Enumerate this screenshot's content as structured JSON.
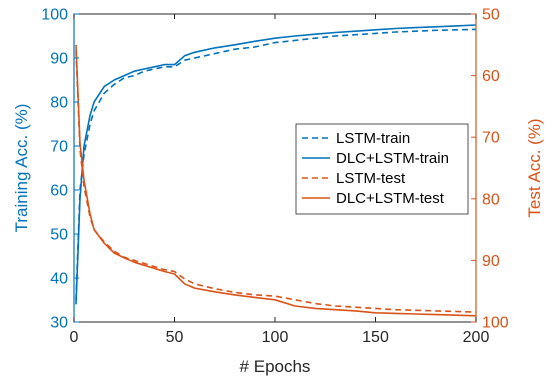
{
  "chart_data": {
    "type": "line",
    "xlabel": "# Epochs",
    "ylabel_left": "Training Acc. (%)",
    "ylabel_right": "Test Acc. (%)",
    "xlim": [
      0,
      200
    ],
    "ylim_left": [
      30,
      100
    ],
    "ylim_right": [
      100,
      50
    ],
    "right_axis_reversed": true,
    "x_ticks": [
      "0",
      "50",
      "100",
      "150",
      "200"
    ],
    "y_ticks_left": [
      "30",
      "40",
      "50",
      "60",
      "70",
      "80",
      "90",
      "100"
    ],
    "y_ticks_right": [
      "50",
      "60",
      "70",
      "80",
      "90",
      "100"
    ],
    "grid": false,
    "legend_position": "center-right",
    "colors": {
      "train": "#0072BD",
      "test": "#D95319"
    },
    "series": [
      {
        "name": "LSTM-train",
        "axis": "left",
        "style": "dashed",
        "x": [
          1,
          3,
          5,
          8,
          10,
          15,
          20,
          25,
          30,
          35,
          40,
          45,
          50,
          55,
          60,
          70,
          80,
          90,
          100,
          110,
          120,
          130,
          140,
          150,
          160,
          170,
          180,
          190,
          200
        ],
        "y": [
          35,
          60,
          68,
          75,
          78,
          82,
          84,
          85.5,
          86,
          87,
          87.5,
          88,
          88,
          89.5,
          90,
          91,
          92,
          92.5,
          93.5,
          94,
          94.5,
          95,
          95.3,
          95.6,
          95.9,
          96.1,
          96.3,
          96.4,
          96.5
        ]
      },
      {
        "name": "DLC+LSTM-train",
        "axis": "left",
        "style": "solid",
        "x": [
          1,
          3,
          5,
          8,
          10,
          15,
          20,
          25,
          30,
          35,
          40,
          45,
          50,
          55,
          60,
          70,
          80,
          90,
          100,
          110,
          120,
          130,
          140,
          150,
          160,
          170,
          180,
          190,
          200
        ],
        "y": [
          34,
          58,
          70,
          77,
          80,
          83.5,
          85,
          86,
          87,
          87.5,
          88,
          88.5,
          88.5,
          90.5,
          91.3,
          92.3,
          93,
          93.8,
          94.5,
          95,
          95.4,
          95.8,
          96.1,
          96.4,
          96.7,
          96.9,
          97.1,
          97.3,
          97.5
        ]
      },
      {
        "name": "LSTM-test",
        "axis": "right",
        "style": "dashed",
        "x": [
          1,
          3,
          5,
          8,
          10,
          15,
          20,
          25,
          30,
          35,
          40,
          45,
          50,
          55,
          60,
          70,
          80,
          90,
          100,
          110,
          120,
          130,
          140,
          150,
          160,
          170,
          180,
          190,
          200
        ],
        "y": [
          56,
          72,
          78,
          83,
          85,
          87,
          88.5,
          89.5,
          90,
          90.5,
          91,
          91.5,
          91.8,
          93,
          93.8,
          94.6,
          95.2,
          95.6,
          95.8,
          96.4,
          97,
          97.4,
          97.6,
          97.8,
          98,
          98.1,
          98.2,
          98.3,
          98.4
        ]
      },
      {
        "name": "DLC+LSTM-test",
        "axis": "right",
        "style": "solid",
        "x": [
          1,
          3,
          5,
          8,
          10,
          15,
          20,
          25,
          30,
          35,
          40,
          45,
          50,
          55,
          60,
          70,
          80,
          90,
          100,
          110,
          120,
          130,
          140,
          150,
          160,
          170,
          180,
          190,
          200
        ],
        "y": [
          55,
          71,
          77,
          82.5,
          85,
          87.2,
          88.8,
          89.6,
          90.3,
          90.8,
          91.3,
          91.8,
          92.2,
          93.8,
          94.5,
          95.1,
          95.6,
          96,
          96.4,
          97.4,
          97.8,
          98,
          98.2,
          98.5,
          98.6,
          98.7,
          98.8,
          98.9,
          99
        ]
      }
    ]
  }
}
